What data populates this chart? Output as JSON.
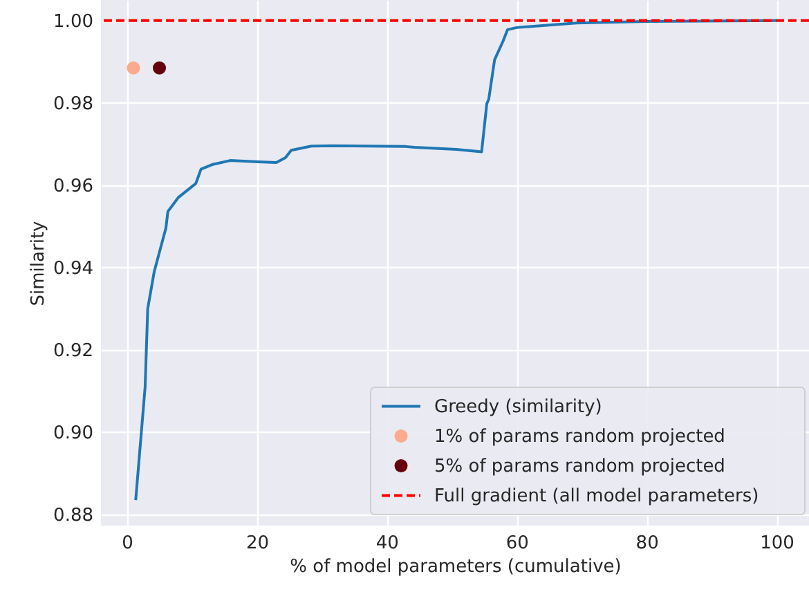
{
  "chart_data": {
    "type": "line",
    "xlabel": "% of model parameters (cumulative)",
    "ylabel": "Similarity",
    "xlim": [
      -4,
      105
    ],
    "ylim": [
      0.8773,
      1.005
    ],
    "xticks": [
      0,
      20,
      40,
      60,
      80,
      100
    ],
    "yticks": [
      0.88,
      {
        "value": 0.9,
        "label": "0.90"
      },
      0.92,
      0.94,
      0.96,
      0.98,
      {
        "value": 1.0,
        "label": "1.00"
      }
    ],
    "grid": true,
    "legend": "bottom right",
    "series": [
      {
        "name": "Greedy (similarity)",
        "color": "#1f77b4",
        "line_style": "solid",
        "x": [
          1.35,
          2.8,
          3.2,
          4.2,
          6.0,
          6.3,
          7.9,
          10.6,
          11.4,
          13.1,
          15.9,
          20.2,
          23,
          24.4,
          25.3,
          28.4,
          31.6,
          42.9,
          44.3,
          50.7,
          54.6,
          55.4,
          55.7,
          56.6,
          57.9,
          58.6,
          60,
          69.2,
          79.9,
          100
        ],
        "values": [
          0.8835,
          0.911,
          0.93,
          0.939,
          0.9496,
          0.9536,
          0.957,
          0.9604,
          0.9639,
          0.965,
          0.966,
          0.9657,
          0.9655,
          0.9667,
          0.9685,
          0.9695,
          0.9696,
          0.9694,
          0.9692,
          0.9687,
          0.9681,
          0.9798,
          0.9809,
          0.9905,
          0.995,
          0.9978,
          0.9983,
          0.9994,
          0.9998,
          1.0
        ]
      },
      {
        "name": "1% of params random projected",
        "type": "scatter",
        "marker": "circle",
        "color": "#fcaa8e",
        "x": [
          1
        ],
        "values": [
          0.9885
        ]
      },
      {
        "name": "5% of params random projected",
        "type": "scatter",
        "marker": "circle",
        "color": "#67000d",
        "x": [
          5
        ],
        "values": [
          0.9885
        ]
      }
    ],
    "ref_lines": [
      {
        "axis": "y",
        "value": 1.0,
        "label": "Full gradient (all model parameters)",
        "color": "#ff0000",
        "line_style": "dashed"
      }
    ]
  }
}
